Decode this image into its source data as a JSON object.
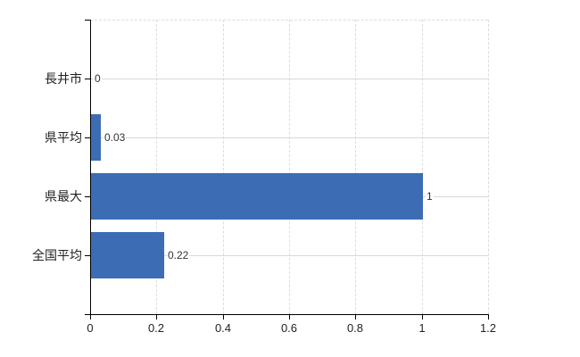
{
  "chart_data": {
    "type": "bar",
    "orientation": "horizontal",
    "title": "",
    "xlabel": "",
    "ylabel": "",
    "categories": [
      "長井市",
      "県平均",
      "県最大",
      "全国平均"
    ],
    "values": [
      0,
      0.03,
      1,
      0.22
    ],
    "value_labels": [
      "0",
      "0.03",
      "1",
      "0.22"
    ],
    "xlim": [
      0,
      1.2
    ],
    "x_ticks": [
      0,
      0.2,
      0.4,
      0.6,
      0.8,
      1,
      1.2
    ],
    "x_tick_labels": [
      "0",
      "0.2",
      "0.4",
      "0.6",
      "0.8",
      "1",
      "1.2"
    ],
    "legend": "none",
    "grid": {
      "vertical": "dashed",
      "horizontal": "solid"
    }
  },
  "colors": {
    "bar": "#3c6db4",
    "axis": "#000000",
    "grid_horizontal": "#d8d8d8",
    "grid_vertical": "#dcdcdc",
    "text": "#222222",
    "value_text": "#333333",
    "background": "#ffffff"
  }
}
